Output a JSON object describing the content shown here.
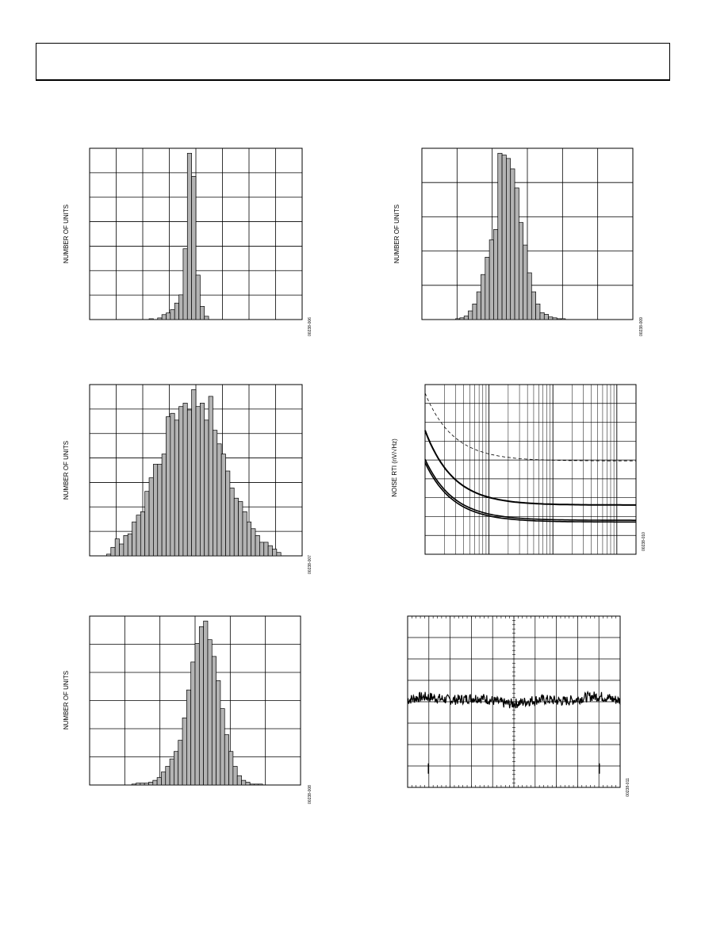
{
  "header": {
    "text": ""
  },
  "chart_data": [
    {
      "id": "fig-a",
      "type": "bar",
      "title": "",
      "ylabel": "NUMBER OF UNITS",
      "xlabel": "",
      "grid": true,
      "xdiv": 8,
      "ydiv": 7,
      "figure_code": "00238-006",
      "values": [
        0,
        0,
        0,
        0,
        0,
        0,
        0,
        0,
        0,
        0,
        0,
        0,
        0,
        0,
        0.5,
        0,
        1,
        3,
        4,
        6,
        10,
        15,
        43,
        101,
        87,
        27,
        8,
        2,
        0,
        0,
        0,
        0,
        0,
        0,
        0,
        0,
        0,
        0,
        0,
        0,
        0,
        0,
        0,
        0,
        0,
        0,
        0,
        0,
        0,
        0
      ]
    },
    {
      "id": "fig-b",
      "type": "bar",
      "title": "",
      "ylabel": "NUMBER OF UNITS",
      "xlabel": "",
      "grid": true,
      "xdiv": 6,
      "ydiv": 5,
      "figure_code": "00238-009",
      "values": [
        0,
        0,
        0,
        0,
        0,
        0,
        0,
        0,
        0.5,
        1,
        2,
        5,
        9,
        16,
        26,
        36,
        46,
        52,
        96,
        95,
        93,
        87,
        76,
        56,
        43,
        27,
        16,
        9,
        4,
        3,
        1.5,
        1,
        0.5,
        0.5,
        0,
        0,
        0,
        0,
        0,
        0,
        0,
        0,
        0,
        0,
        0,
        0,
        0,
        0,
        0,
        0
      ]
    },
    {
      "id": "fig-c",
      "type": "bar",
      "title": "",
      "ylabel": "NUMBER OF UNITS",
      "xlabel": "",
      "grid": true,
      "xdiv": 8,
      "ydiv": 7,
      "figure_code": "00238-007",
      "values": [
        0,
        0,
        0,
        0,
        0.5,
        2.5,
        5,
        3.5,
        6,
        6.5,
        10,
        12,
        13,
        19,
        23,
        27,
        27,
        30,
        41,
        42,
        40,
        44,
        45,
        43,
        49,
        44,
        45,
        40,
        47,
        37,
        33,
        30,
        25,
        20,
        17,
        16,
        13,
        10,
        8,
        6,
        4,
        4,
        3,
        2,
        1,
        0,
        0,
        0,
        0,
        0
      ]
    },
    {
      "id": "fig-d",
      "type": "line",
      "title": "",
      "ylabel": "NOISE RTI (nV/√Hz)",
      "xlabel": "",
      "xscale": "log",
      "figure_code": "00238-010",
      "series_style": [
        "dashed",
        "solid",
        "solid",
        "solid"
      ],
      "curves": [
        {
          "a": 0.95,
          "b": 0.55
        },
        {
          "a": 0.73,
          "b": 0.29
        },
        {
          "a": 0.56,
          "b": 0.2
        },
        {
          "a": 0.54,
          "b": 0.19
        }
      ]
    },
    {
      "id": "fig-e",
      "type": "bar",
      "title": "",
      "ylabel": "NUMBER OF UNITS",
      "xlabel": "",
      "grid": true,
      "xdiv": 6,
      "ydiv": 6,
      "figure_code": "00238-008",
      "values": [
        0,
        0,
        0,
        0,
        0,
        0,
        0,
        0,
        0,
        0,
        0.5,
        1,
        1,
        1,
        1.5,
        2.5,
        4,
        7,
        10,
        14,
        18,
        24,
        36,
        51,
        66,
        76,
        85,
        88,
        78,
        69,
        56,
        41,
        27,
        18,
        10,
        5,
        2.5,
        1.5,
        0.5,
        0.5,
        0.5,
        0,
        0,
        0,
        0,
        0,
        0,
        0,
        0,
        0
      ]
    },
    {
      "id": "fig-f",
      "type": "line",
      "title": "",
      "ylabel": "",
      "xlabel": "",
      "grid": true,
      "xdiv": 10,
      "ydiv": 8,
      "figure_code": "00238-011",
      "level": 0.51,
      "noise_amplitude": 0.03
    }
  ]
}
